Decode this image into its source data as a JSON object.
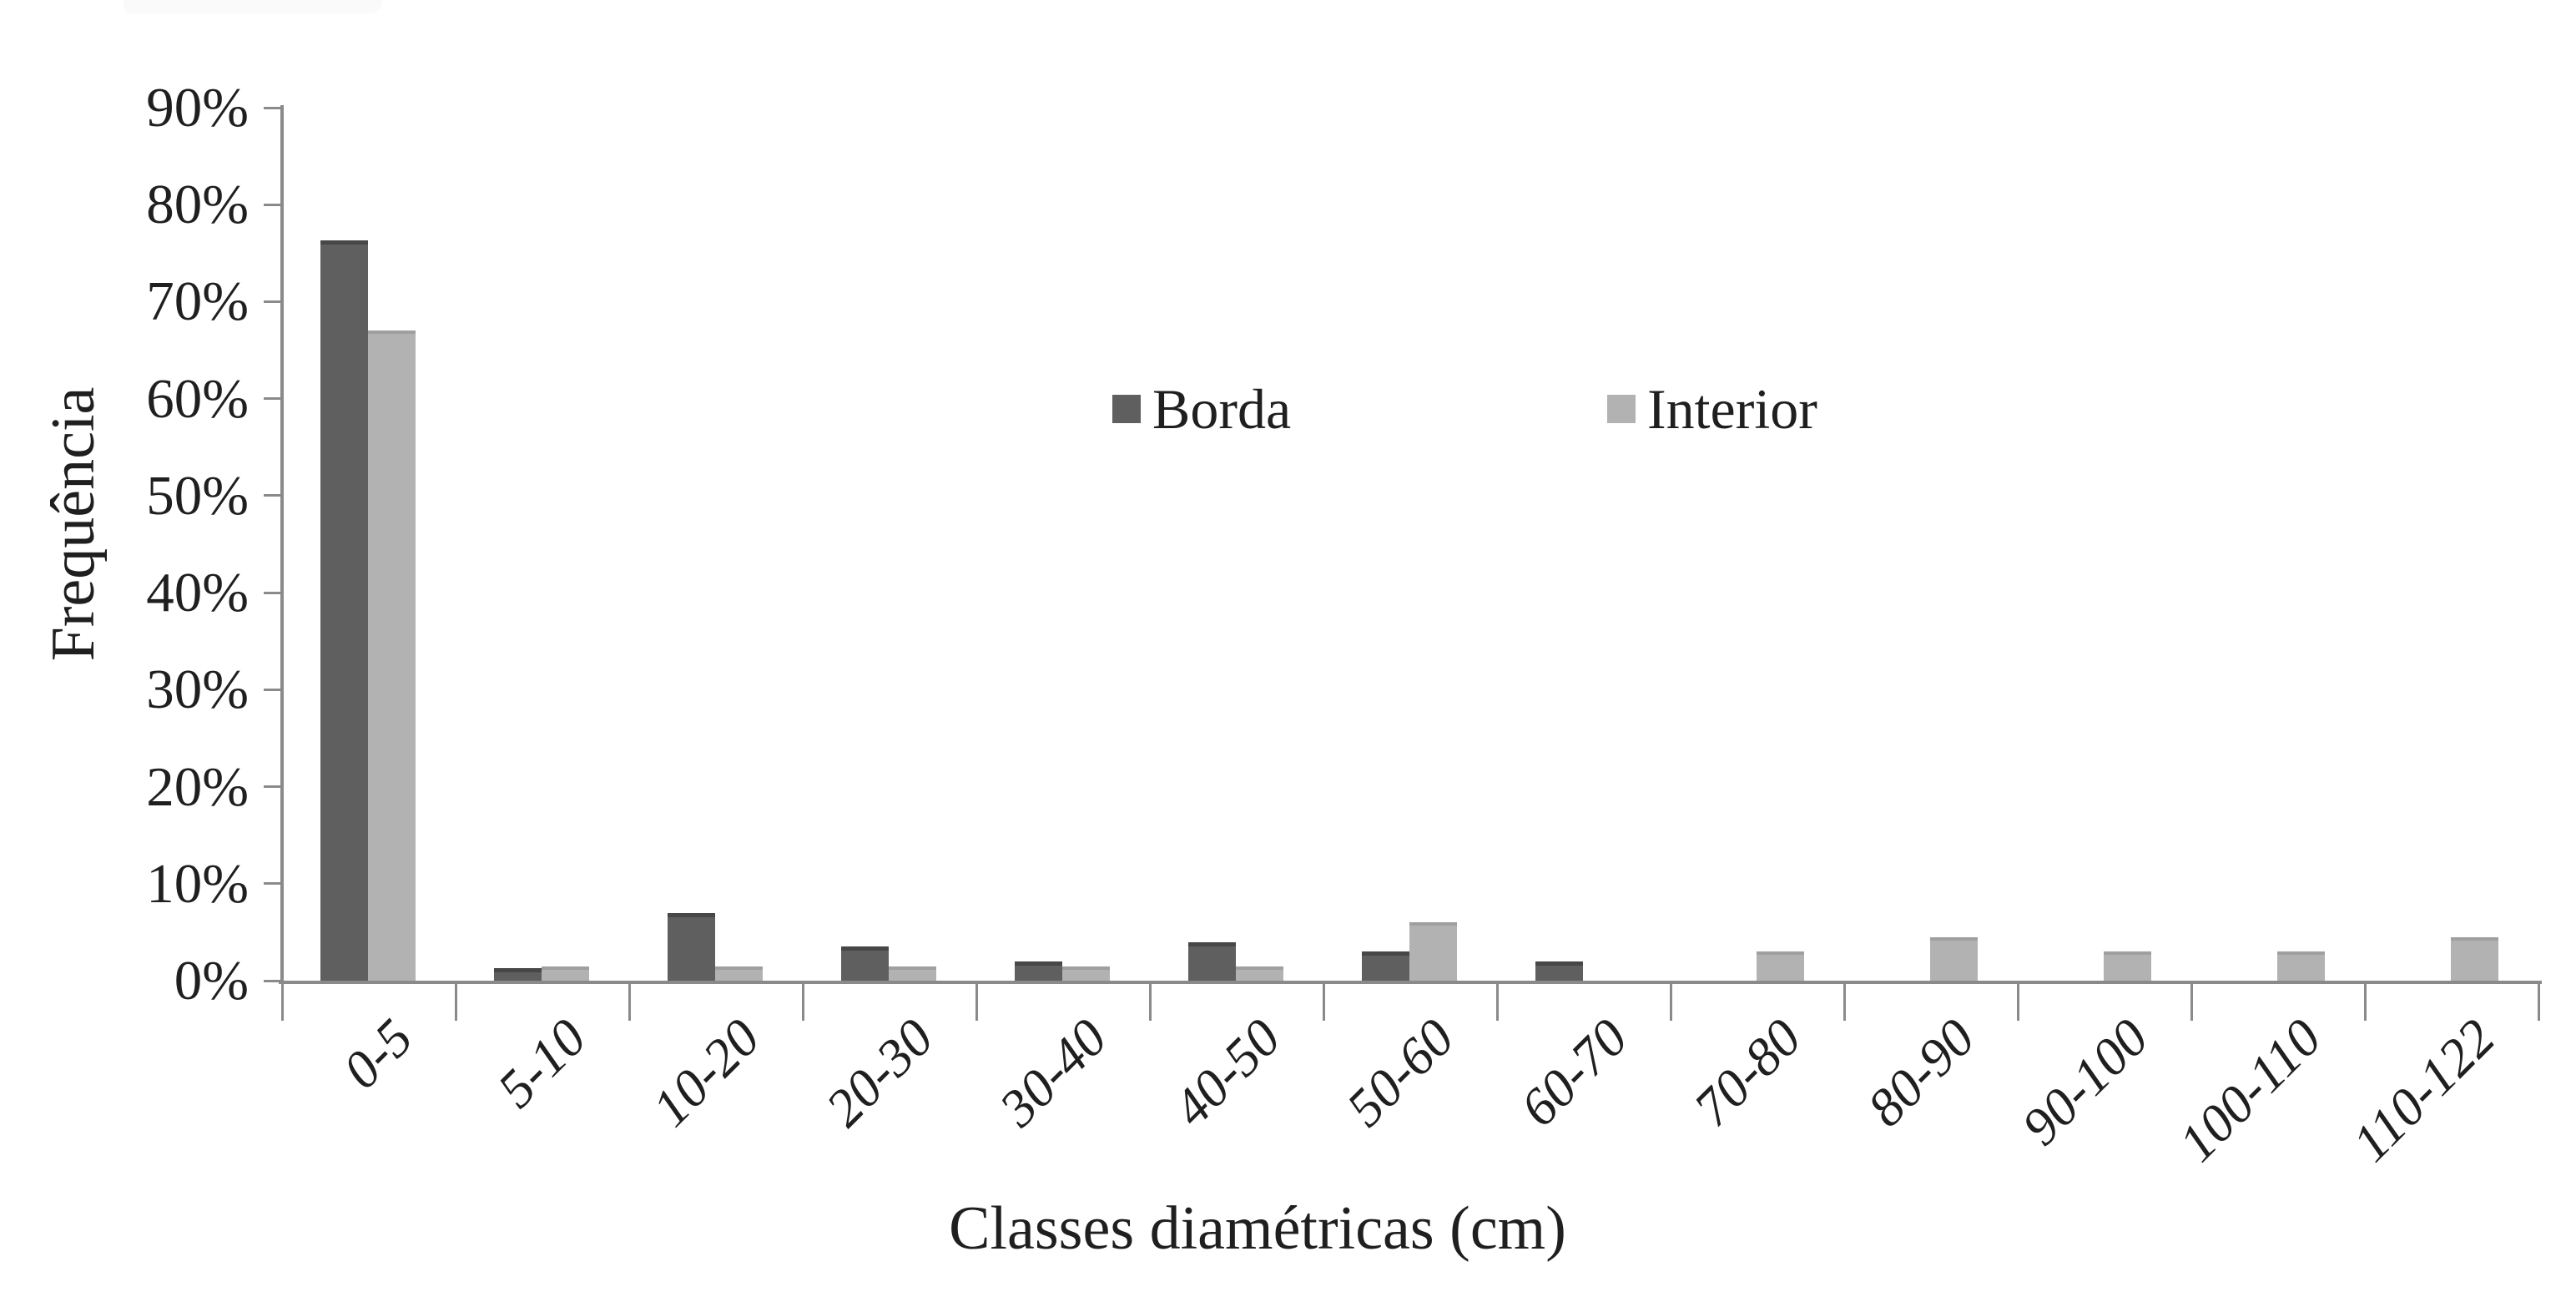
{
  "chart_data": {
    "type": "bar",
    "title": "",
    "xlabel": "Classes diamétricas (cm)",
    "ylabel": "Frequência",
    "categories": [
      "0-5",
      "5-10",
      "10-20",
      "20-30",
      "30-40",
      "40-50",
      "50-60",
      "60-70",
      "70-80",
      "80-90",
      "90-100",
      "100-110",
      "110-122"
    ],
    "series": [
      {
        "name": "Borda",
        "color": "#5f5f5f",
        "values": [
          76.3,
          1.3,
          7.0,
          3.5,
          2.0,
          4.0,
          3.0,
          2.0,
          0,
          0,
          0,
          0,
          0
        ]
      },
      {
        "name": "Interior",
        "color": "#b2b2b2",
        "values": [
          67.0,
          1.5,
          1.5,
          1.5,
          1.5,
          1.5,
          6.0,
          0,
          3.0,
          4.5,
          3.0,
          3.0,
          4.5
        ]
      }
    ],
    "ylim": [
      0,
      90
    ],
    "ytick_step": 10,
    "ytick_labels": [
      "90%",
      "80%",
      "70%",
      "60%",
      "50%",
      "40%",
      "30%",
      "20%",
      "10%",
      "0%"
    ],
    "yaxis_unit": "percent",
    "grid": false,
    "legend_position": "inside-upper-center",
    "axis_color": "#8a8a8a"
  }
}
